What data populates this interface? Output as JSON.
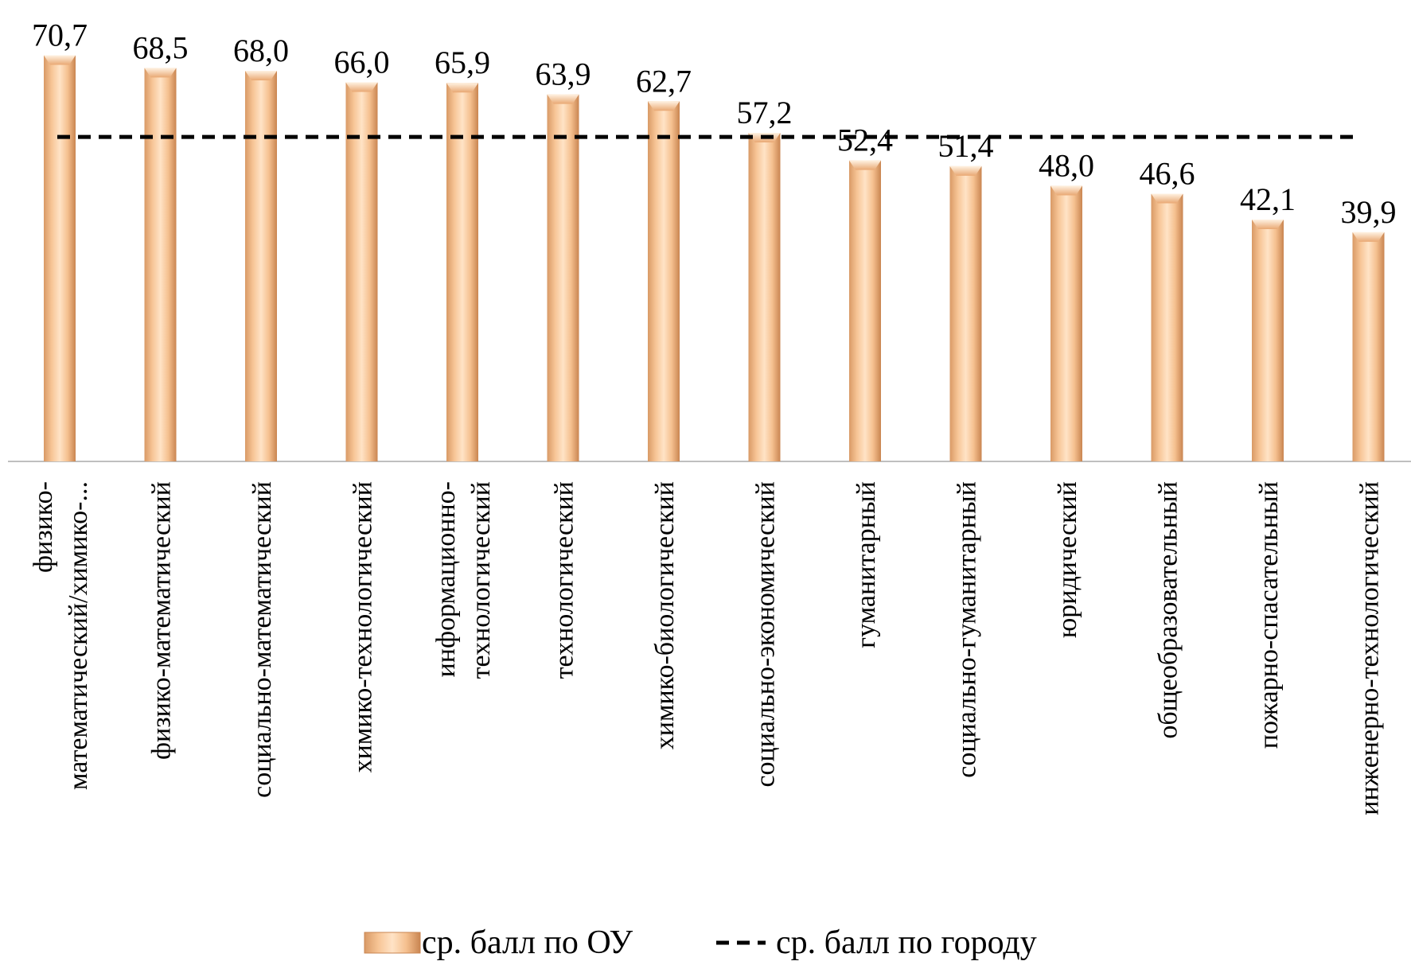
{
  "chart_data": {
    "type": "bar",
    "categories": [
      [
        "физико-",
        "математический/химико-..."
      ],
      [
        "физико-математический"
      ],
      [
        "социально-математический"
      ],
      [
        "химико-технологический"
      ],
      [
        "информационно-",
        "технологический"
      ],
      [
        "технологический"
      ],
      [
        "химико-биологический"
      ],
      [
        "социально-экономический"
      ],
      [
        "гуманитарный"
      ],
      [
        "социально-гуманитарный"
      ],
      [
        "юридический"
      ],
      [
        "общеобразовательный"
      ],
      [
        "пожарно-спасательный"
      ],
      [
        "инженерно-технологический"
      ]
    ],
    "series": [
      {
        "name": "ср. балл по ОУ",
        "values": [
          70.7,
          68.5,
          68.0,
          66.0,
          65.9,
          63.9,
          62.7,
          57.2,
          52.4,
          51.4,
          48.0,
          46.6,
          42.1,
          39.9
        ],
        "labels": [
          "70,7",
          "68,5",
          "68,0",
          "66,0",
          "65,9",
          "63,9",
          "62,7",
          "57,2",
          "52,4",
          "51,4",
          "48,0",
          "46,6",
          "42,1",
          "39,9"
        ],
        "color": "#F9C89A"
      },
      {
        "name": "ср. балл по городу",
        "value": 56.5,
        "style": "dashed",
        "color": "#000000"
      }
    ],
    "ylim": [
      0,
      80
    ],
    "grid": false,
    "legend": "bottom"
  }
}
